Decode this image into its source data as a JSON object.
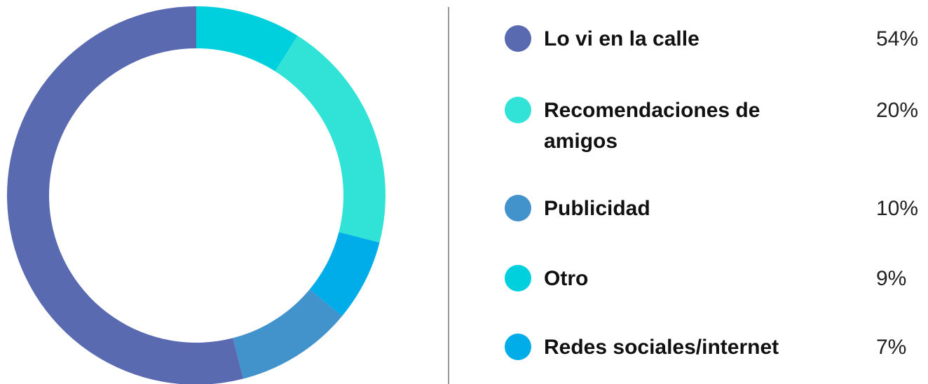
{
  "chart_data": {
    "type": "donut",
    "categories": [
      "Otro",
      "Recomendaciones de amigos",
      "Redes sociales/internet",
      "Publicidad",
      "Lo vi en la calle"
    ],
    "values": [
      9,
      20,
      7,
      10,
      54
    ],
    "value_labels": [
      "9%",
      "20%",
      "7%",
      "10%",
      "54%"
    ],
    "colors": [
      "#00d0dd",
      "#30e3d6",
      "#00ade8",
      "#4292cc",
      "#5a6ab1"
    ]
  }
}
